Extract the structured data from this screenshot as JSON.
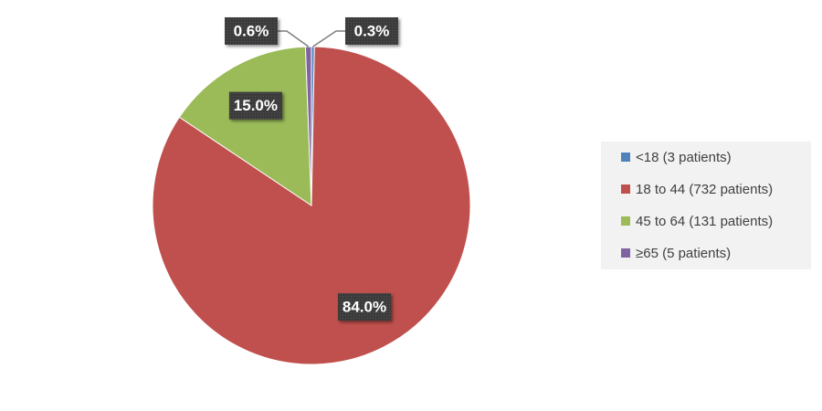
{
  "chart_data": {
    "type": "pie",
    "categories": [
      "<18 (3 patients)",
      "18 to 44 (732 patients)",
      "45 to 64 (131 patients)",
      "≥65 (5 patients)"
    ],
    "values": [
      0.3,
      84.0,
      15.0,
      0.6
    ],
    "value_labels": [
      "0.3%",
      "84.0%",
      "15.0%",
      "0.6%"
    ],
    "colors": [
      "#4f81bd",
      "#c0504d",
      "#9bbb59",
      "#8064a2"
    ],
    "legend": "right"
  }
}
